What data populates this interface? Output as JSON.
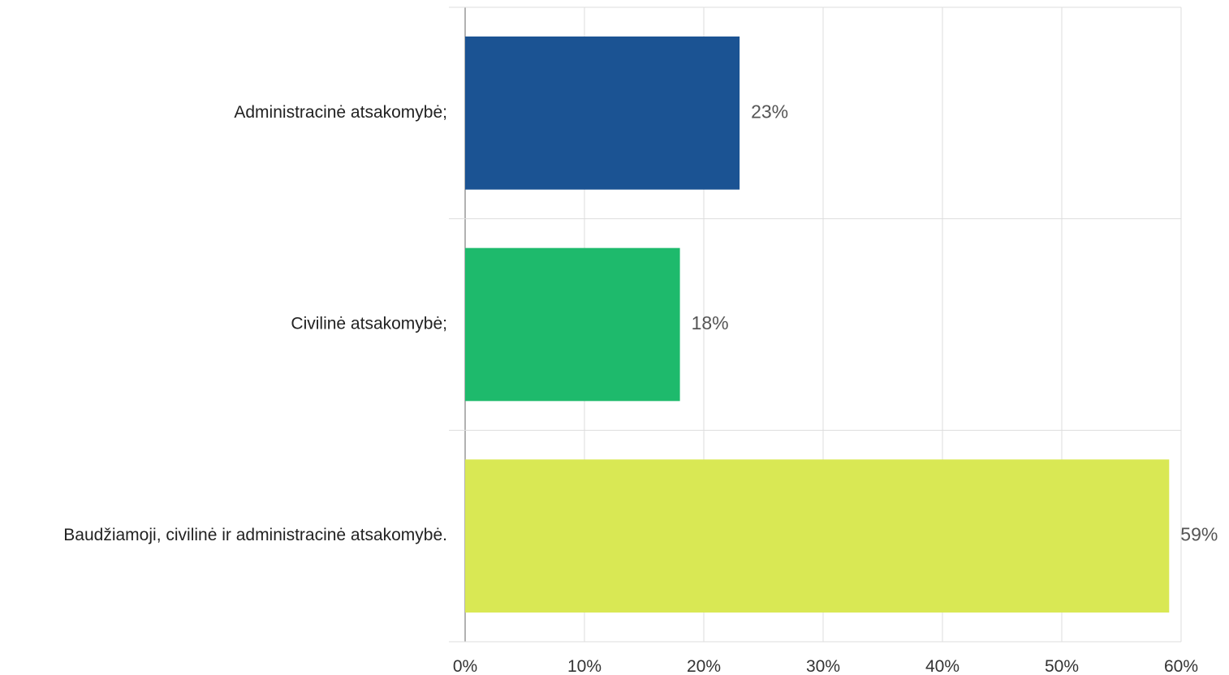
{
  "chart_data": {
    "type": "bar",
    "orientation": "horizontal",
    "categories": [
      "Administracinė atsakomybė;",
      "Civilinė atsakomybė;",
      "Baudžiamoji, civilinė ir administracinė atsakomybė."
    ],
    "values": [
      23,
      18,
      59
    ],
    "value_labels": [
      "23%",
      "18%",
      "59%"
    ],
    "colors": [
      "#1b5393",
      "#1eba6c",
      "#d9e854"
    ],
    "xlim": [
      0,
      60
    ],
    "xticks": [
      0,
      10,
      20,
      30,
      40,
      50,
      60
    ],
    "xtick_labels": [
      "0%",
      "10%",
      "20%",
      "30%",
      "40%",
      "50%",
      "60%"
    ],
    "grid": true,
    "legend": "none"
  }
}
